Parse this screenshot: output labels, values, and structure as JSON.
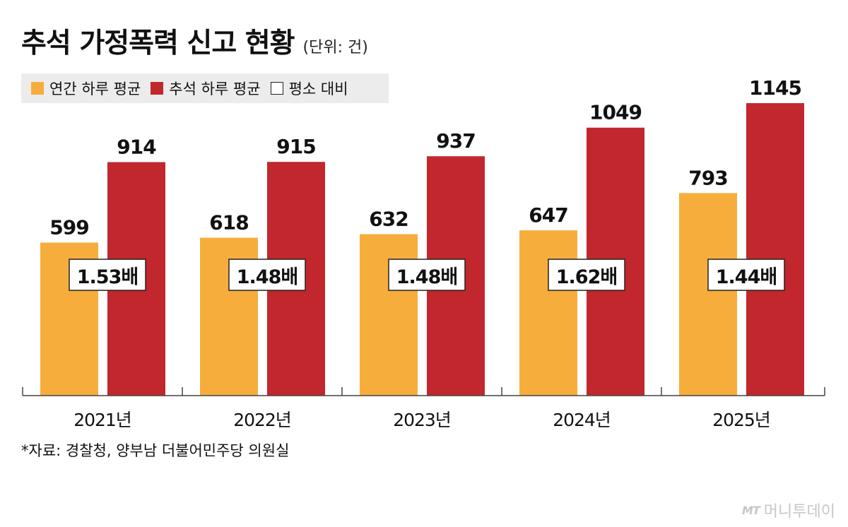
{
  "header": {
    "title": "추석 가정폭력 신고 현황",
    "unit": "(단위: 건)"
  },
  "legend": {
    "items": [
      {
        "label": "연간 하루 평균",
        "color": "#f7ad3c"
      },
      {
        "label": "추석 하루 평균",
        "color": "#c1272d"
      },
      {
        "label": "평소 대비",
        "color": "#ffffff"
      }
    ]
  },
  "chart_data": {
    "type": "bar",
    "categories": [
      "2021년",
      "2022년",
      "2023년",
      "2024년",
      "2025년"
    ],
    "series": [
      {
        "name": "연간 하루 평균",
        "values": [
          599,
          618,
          632,
          647,
          793
        ],
        "color": "#f7ad3c"
      },
      {
        "name": "추석 하루 평균",
        "values": [
          914,
          915,
          937,
          1049,
          1145
        ],
        "color": "#c1272d"
      }
    ],
    "ratios": [
      "1.53배",
      "1.48배",
      "1.48배",
      "1.62배",
      "1.44배"
    ],
    "ylim": [
      0,
      1200
    ],
    "grid": false,
    "legend_position": "top-left"
  },
  "footer": {
    "source": "*자료: 경찰청, 양부남 더불어민주당 의원실",
    "logo_mark": "MT",
    "logo_text": "머니투데이"
  }
}
